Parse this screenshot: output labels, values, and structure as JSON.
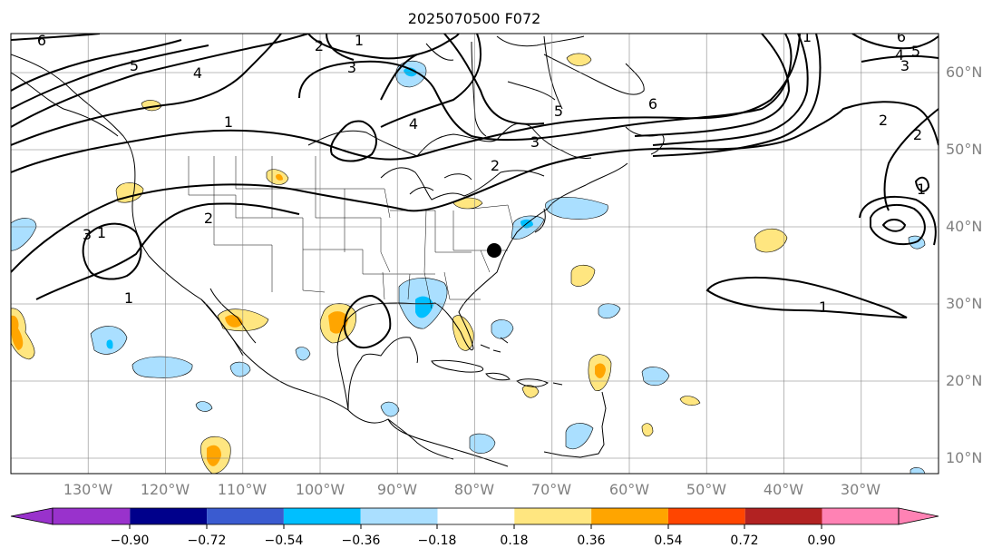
{
  "title": "2025070500 F072",
  "map": {
    "lon_range": [
      -140,
      -20
    ],
    "lat_range": [
      8,
      65
    ],
    "lon_ticks": [
      "130°W",
      "120°W",
      "110°W",
      "100°W",
      "90°W",
      "80°W",
      "70°W",
      "60°W",
      "50°W",
      "40°W",
      "30°W"
    ],
    "lat_ticks": [
      "10°N",
      "20°N",
      "30°N",
      "40°N",
      "50°N",
      "60°N"
    ],
    "gridlines": true,
    "contour_labels": [
      "6",
      "1",
      "2",
      "3",
      "5",
      "4",
      "4",
      "1",
      "6",
      "5",
      "3",
      "2",
      "2",
      "1",
      "3",
      "2",
      "1",
      "1",
      "1",
      "2",
      "3",
      "4",
      "5",
      "6",
      "1"
    ],
    "marker": "black dot"
  },
  "colorbar": {
    "ticks": [
      "−0.90",
      "−0.72",
      "−0.54",
      "−0.36",
      "−0.18",
      "0.18",
      "0.36",
      "0.54",
      "0.72",
      "0.90"
    ],
    "colors": [
      "#9932cc",
      "#00008b",
      "#3a5bd0",
      "#00bfff",
      "#aadfff",
      "#ffffff",
      "#ffe680",
      "#ffa500",
      "#ff4500",
      "#b22222",
      "#ff82b4",
      "#ff82b4"
    ]
  }
}
